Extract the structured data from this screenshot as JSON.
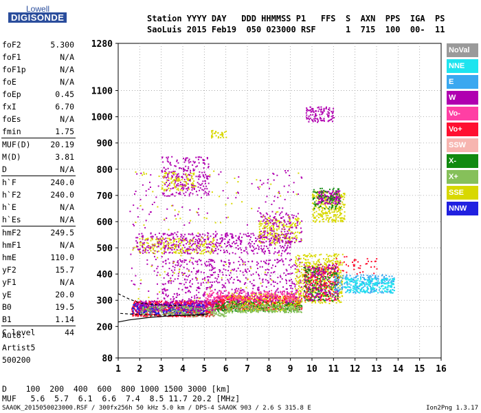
{
  "logo": {
    "line1": "Lowell",
    "line2": "DIGISONDE"
  },
  "header": {
    "line1": "Station YYYY DAY   DDD HHMMSS P1   FFS  S  AXN  PPS  IGA  PS",
    "line2": "SaoLuis 2015 Feb19  050 023000 RSF      1  715  100  00-  11"
  },
  "params": [
    {
      "key": "foF2",
      "value": "5.300"
    },
    {
      "key": "foF1",
      "value": "N/A"
    },
    {
      "key": "foF1p",
      "value": "N/A"
    },
    {
      "key": "foE",
      "value": "N/A"
    },
    {
      "key": "foEp",
      "value": "0.45"
    },
    {
      "key": "fxI",
      "value": "6.70"
    },
    {
      "key": "foEs",
      "value": "N/A"
    },
    {
      "key": "fmin",
      "value": "1.75"
    },
    {
      "key": "MUF(D)",
      "value": "20.19"
    },
    {
      "key": "M(D)",
      "value": "3.81"
    },
    {
      "key": "D",
      "value": "N/A"
    },
    {
      "key": "h`F",
      "value": "240.0"
    },
    {
      "key": "h`F2",
      "value": "240.0"
    },
    {
      "key": "h`E",
      "value": "N/A"
    },
    {
      "key": "h`Es",
      "value": "N/A"
    },
    {
      "key": "hmF2",
      "value": "249.5"
    },
    {
      "key": "hmF1",
      "value": "N/A"
    },
    {
      "key": "hmE",
      "value": "110.0"
    },
    {
      "key": "yF2",
      "value": "15.7"
    },
    {
      "key": "yF1",
      "value": "N/A"
    },
    {
      "key": "yE",
      "value": "20.0"
    },
    {
      "key": "B0",
      "value": "19.5"
    },
    {
      "key": "B1",
      "value": "1.14"
    },
    {
      "key": "C-level",
      "value": "44"
    }
  ],
  "auto": {
    "line1": "Auto:",
    "line2": "Artist5",
    "line3": "500200"
  },
  "legend": [
    {
      "label": "NoVal",
      "color": "#9a9a9a"
    },
    {
      "label": "NNE",
      "color": "#1ee4ef"
    },
    {
      "label": "E",
      "color": "#3aa8f0"
    },
    {
      "label": "W",
      "color": "#b000b0"
    },
    {
      "label": "Vo-",
      "color": "#ff3fa4"
    },
    {
      "label": "Vo+",
      "color": "#ff1030"
    },
    {
      "label": "SSW",
      "color": "#f7b5b0"
    },
    {
      "label": "X-",
      "color": "#118a11"
    },
    {
      "label": "X+",
      "color": "#86c05a"
    },
    {
      "label": "SSE",
      "color": "#d8d800"
    },
    {
      "label": "NNW",
      "color": "#2020e0"
    }
  ],
  "dmuf": {
    "d_line": "D    100  200  400  600  800 1000 1500 3000 [km]",
    "m_line": "MUF   5.6  5.7  6.1  6.6  7.4  8.5 11.7 20.2 [MHz]"
  },
  "footer": {
    "text": "SAAOK_2015050023000.RSF / 300fx256h 50 kHz 5.0 km / DPS-4 SAAOK 903 / 2.6 S 315.8 E",
    "version": "Ion2Png 1.3.17"
  },
  "chart_data": {
    "type": "scatter",
    "xlim": [
      1,
      16
    ],
    "ylim": [
      80,
      1280
    ],
    "x_ticks": [
      1,
      2,
      3,
      4,
      5,
      6,
      7,
      8,
      9,
      10,
      11,
      12,
      13,
      14,
      15,
      16
    ],
    "y_ticks": [
      80,
      200,
      300,
      400,
      500,
      600,
      700,
      800,
      900,
      1000,
      1100,
      1280
    ],
    "grid": "dotted",
    "clusters": [
      {
        "name": "F-trace",
        "color": "#ff1030",
        "x": [
          1.6,
          5.5
        ],
        "y": [
          240,
          300
        ],
        "count": 700
      },
      {
        "name": "F-trace",
        "color": "#2020e0",
        "x": [
          1.6,
          5.0
        ],
        "y": [
          250,
          290
        ],
        "count": 260
      },
      {
        "name": "F-trace",
        "color": "#b000b0",
        "x": [
          1.8,
          5.5
        ],
        "y": [
          260,
          300
        ],
        "count": 220
      },
      {
        "name": "F-trace",
        "color": "#86c05a",
        "x": [
          2.0,
          6.0
        ],
        "y": [
          240,
          280
        ],
        "count": 200
      },
      {
        "name": "F-trace",
        "color": "#ff1030",
        "x": [
          5.5,
          9.5
        ],
        "y": [
          265,
          320
        ],
        "count": 650
      },
      {
        "name": "F-trace",
        "color": "#118a11",
        "x": [
          5.5,
          9.5
        ],
        "y": [
          260,
          300
        ],
        "count": 250
      },
      {
        "name": "F-trace",
        "color": "#d8d800",
        "x": [
          6.0,
          9.5
        ],
        "y": [
          260,
          330
        ],
        "count": 220
      },
      {
        "name": "F-trace",
        "color": "#86c05a",
        "x": [
          6.0,
          9.5
        ],
        "y": [
          255,
          285
        ],
        "count": 200
      },
      {
        "name": "F-trace",
        "color": "#b000b0",
        "x": [
          3.0,
          9.5
        ],
        "y": [
          290,
          460
        ],
        "count": 500
      },
      {
        "name": "F-trace",
        "color": "#ff3fa4",
        "x": [
          5.0,
          9.5
        ],
        "y": [
          300,
          340
        ],
        "count": 200
      },
      {
        "name": "F-trace",
        "color": "#d8d800",
        "x": [
          9.2,
          11.4
        ],
        "y": [
          290,
          480
        ],
        "count": 500
      },
      {
        "name": "F-trace",
        "color": "#ff1030",
        "x": [
          9.6,
          11.2
        ],
        "y": [
          300,
          430
        ],
        "count": 240
      },
      {
        "name": "F-trace",
        "color": "#118a11",
        "x": [
          9.6,
          11.2
        ],
        "y": [
          300,
          430
        ],
        "count": 160
      },
      {
        "name": "F-trace",
        "color": "#b000b0",
        "x": [
          9.6,
          11.2
        ],
        "y": [
          300,
          440
        ],
        "count": 140
      },
      {
        "name": "F-trace",
        "color": "#3aa8f0",
        "x": [
          11.0,
          13.8
        ],
        "y": [
          330,
          400
        ],
        "count": 230
      },
      {
        "name": "F-trace",
        "color": "#1ee4ef",
        "x": [
          11.5,
          13.8
        ],
        "y": [
          330,
          390
        ],
        "count": 200
      },
      {
        "name": "F-trace",
        "color": "#ff1030",
        "x": [
          11.0,
          13.0
        ],
        "y": [
          400,
          470
        ],
        "count": 40
      },
      {
        "name": "F-trace",
        "color": "#b000b0",
        "x": [
          1.8,
          9.0
        ],
        "y": [
          480,
          560
        ],
        "count": 480
      },
      {
        "name": "F-trace",
        "color": "#d8d800",
        "x": [
          1.8,
          5.5
        ],
        "y": [
          480,
          540
        ],
        "count": 160
      },
      {
        "name": "F-trace",
        "color": "#d8d800",
        "x": [
          7.5,
          9.5
        ],
        "y": [
          520,
          620
        ],
        "count": 180
      },
      {
        "name": "F-trace",
        "color": "#b000b0",
        "x": [
          7.5,
          9.5
        ],
        "y": [
          520,
          640
        ],
        "count": 140
      },
      {
        "name": "F-trace",
        "color": "#b000b0",
        "x": [
          3.0,
          5.2
        ],
        "y": [
          700,
          850
        ],
        "count": 230
      },
      {
        "name": "F-trace",
        "color": "#d8d800",
        "x": [
          3.0,
          4.5
        ],
        "y": [
          720,
          790
        ],
        "count": 90
      },
      {
        "name": "F-trace",
        "color": "#d8d800",
        "x": [
          10.0,
          11.5
        ],
        "y": [
          600,
          720
        ],
        "count": 300
      },
      {
        "name": "F-trace",
        "color": "#b000b0",
        "x": [
          10.2,
          11.3
        ],
        "y": [
          670,
          720
        ],
        "count": 140
      },
      {
        "name": "F-trace",
        "color": "#118a11",
        "x": [
          10.0,
          11.3
        ],
        "y": [
          650,
          730
        ],
        "count": 80
      },
      {
        "name": "F-trace",
        "color": "#b000b0",
        "x": [
          9.7,
          11.0
        ],
        "y": [
          980,
          1040
        ],
        "count": 110
      },
      {
        "name": "F-trace",
        "color": "#d8d800",
        "x": [
          5.3,
          6.0
        ],
        "y": [
          920,
          950
        ],
        "count": 30
      },
      {
        "name": "F-trace",
        "color": "#b000b0",
        "x": [
          1.5,
          9.5
        ],
        "y": [
          300,
          800
        ],
        "count": 260
      },
      {
        "name": "F-trace",
        "color": "#d8d800",
        "x": [
          1.5,
          9.5
        ],
        "y": [
          300,
          800
        ],
        "count": 120
      }
    ],
    "lines": [
      {
        "name": "profile",
        "color": "#000000",
        "dash": false,
        "points": [
          [
            1.0,
            217
          ],
          [
            1.5,
            225
          ],
          [
            2.5,
            235
          ],
          [
            3.5,
            241
          ],
          [
            4.5,
            244
          ],
          [
            5.0,
            246
          ],
          [
            5.2,
            249
          ]
        ]
      },
      {
        "name": "profile",
        "color": "#000000",
        "dash": true,
        "points": [
          [
            1.0,
            325
          ],
          [
            1.5,
            305
          ],
          [
            2.0,
            290
          ],
          [
            2.5,
            284
          ],
          [
            3.0,
            282
          ],
          [
            3.5,
            281
          ],
          [
            4.0,
            281
          ]
        ]
      },
      {
        "name": "profile",
        "color": "#000000",
        "dash": true,
        "points": [
          [
            1.1,
            250
          ],
          [
            2.0,
            245
          ],
          [
            3.0,
            243
          ],
          [
            4.0,
            242
          ],
          [
            5.0,
            243
          ]
        ]
      }
    ]
  }
}
